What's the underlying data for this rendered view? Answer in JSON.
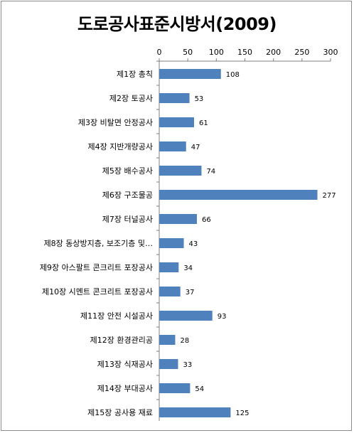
{
  "chart_data": {
    "type": "bar",
    "orientation": "horizontal",
    "title": "도로공사표준시방서(2009)",
    "categories": [
      "제1장 총칙",
      "제2장 토공사",
      "제3장 비탈면 안정공사",
      "제4장 지반개량공사",
      "제5장 배수공사",
      "제6장 구조물공",
      "제7장 터널공사",
      "제8장 동상방지층, 보조기층 및…",
      "제9장 아스팔트 콘크리트 포장공사",
      "제10장 시멘트 콘크리트 포장공사",
      "제11장 안전 시설공사",
      "제12장 환경관리공",
      "제13장 식재공사",
      "제14장 부대공사",
      "제15장 공사용 재료"
    ],
    "values": [
      108,
      53,
      61,
      47,
      74,
      277,
      66,
      43,
      34,
      37,
      93,
      28,
      33,
      54,
      125
    ],
    "xlim": [
      0,
      300
    ],
    "xticks": [
      0,
      50,
      100,
      150,
      200,
      250,
      300
    ],
    "x_axis_position": "top",
    "grid": false,
    "legend": "none",
    "bar_color": "#4f81bd",
    "show_data_labels": true
  }
}
